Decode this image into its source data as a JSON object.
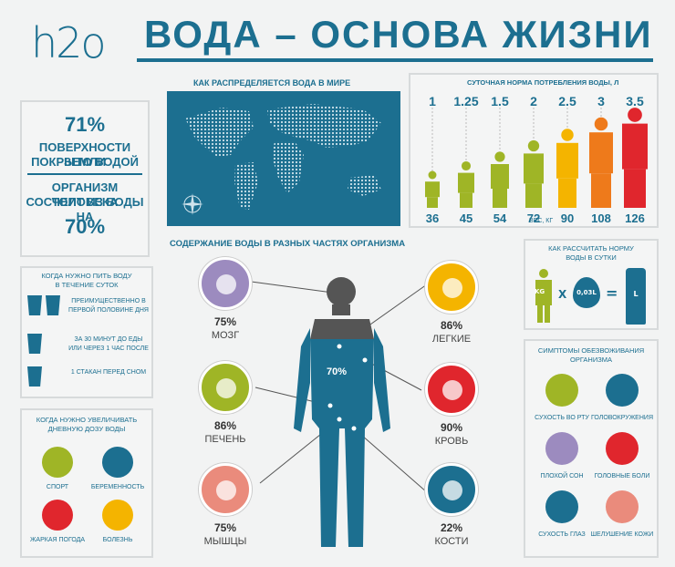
{
  "header": {
    "logo": "h2o",
    "title": "ВОДА – ОСНОВА ЖИЗНИ"
  },
  "left_facts": {
    "pct1": "71%",
    "text1a": "ПОВЕРХНОСТИ ЗЕМЛИ",
    "text1b": "ПОКРЫТО ВОДОЙ",
    "text2a": "ОРГАНИЗМ ЧЕЛОВЕКА",
    "text2b": "СОСТОИТ ИЗ ВОДЫ НА",
    "pct2": "70%"
  },
  "map": {
    "title": "КАК РАСПРЕДЕЛЯЕТСЯ ВОДА В МИРЕ"
  },
  "daily": {
    "title": "СУТОЧНАЯ НОРМА ПОТРЕБЛЕНИЯ ВОДЫ, Л",
    "liters": [
      "1",
      "1.25",
      "1.5",
      "2",
      "2.5",
      "3",
      "3.5"
    ],
    "weights": [
      "36",
      "45",
      "54",
      "72",
      "90",
      "108",
      "126"
    ],
    "weight_unit": "ВЕС, КГ",
    "colors": [
      "#9fb526",
      "#9fb526",
      "#9fb526",
      "#9fb526",
      "#f4b400",
      "#ee7a1b",
      "#e0262d"
    ]
  },
  "body": {
    "title": "СОДЕРЖАНИЕ ВОДЫ В РАЗНЫХ ЧАСТЯХ ОРГАНИЗМА",
    "center_pct": "70%"
  },
  "organs": [
    {
      "pct": "75%",
      "label": "МОЗГ",
      "icon": "brain-icon",
      "color": "#9c8bbf"
    },
    {
      "pct": "86%",
      "label": "ПЕЧЕНЬ",
      "icon": "liver-icon",
      "color": "#9fb526"
    },
    {
      "pct": "75%",
      "label": "МЫШЦЫ",
      "icon": "muscle-icon",
      "color": "#ea8b7c"
    },
    {
      "pct": "86%",
      "label": "ЛЕГКИЕ",
      "icon": "lungs-icon",
      "color": "#f4b400"
    },
    {
      "pct": "90%",
      "label": "КРОВЬ",
      "icon": "blood-drop-icon",
      "color": "#e0262d"
    },
    {
      "pct": "22%",
      "label": "КОСТИ",
      "icon": "bones-icon",
      "color": "#1c6f90"
    }
  ],
  "when_drink": {
    "title1": "КОГДА НУЖНО ПИТЬ ВОДУ",
    "title2": "В ТЕЧЕНИЕ СУТОК",
    "items": [
      {
        "a": "ПРЕИМУЩЕСТВЕННО В",
        "b": "ПЕРВОЙ ПОЛОВИНЕ ДНЯ"
      },
      {
        "a": "ЗА 30 МИНУТ ДО ЕДЫ",
        "b": "ИЛИ ЧЕРЕЗ 1 ЧАС ПОСЛЕ"
      },
      {
        "a": "1 СТАКАН ПЕРЕД СНОМ",
        "b": ""
      }
    ]
  },
  "increase": {
    "title1": "КОГДА НУЖНО УВЕЛИЧИВАТЬ",
    "title2": "ДНЕВНУЮ ДОЗУ ВОДЫ",
    "items": [
      {
        "label": "СПОРТ",
        "icon": "running-icon",
        "color": "#9fb526"
      },
      {
        "label": "БЕРЕМЕННОСТЬ",
        "icon": "pregnancy-icon",
        "color": "#1c6f90"
      },
      {
        "label": "ЖАРКАЯ ПОГОДА",
        "icon": "sun-icon",
        "color": "#e0262d"
      },
      {
        "label": "БОЛЕЗНЬ",
        "icon": "thermometer-icon",
        "color": "#f4b400"
      }
    ]
  },
  "calc": {
    "title1": "КАК РАССЧИТАТЬ НОРМУ",
    "title2": "ВОДЫ В СУТКИ",
    "kg": "KG",
    "x": "X",
    "per": "0,03L",
    "eq": "=",
    "l": "L"
  },
  "symptoms": {
    "title1": "СИМПТОМЫ ОБЕЗВОЖИВАНИЯ",
    "title2": "ОРГАНИЗМА",
    "items": [
      {
        "label": "СУХОСТЬ ВО РТУ",
        "icon": "lips-icon",
        "color": "#9fb526"
      },
      {
        "label": "ГОЛОВОКРУЖЕНИЯ",
        "icon": "dizziness-icon",
        "color": "#1c6f90"
      },
      {
        "label": "ПЛОХОЙ СОН",
        "icon": "bed-icon",
        "color": "#9c8bbf"
      },
      {
        "label": "ГОЛОВНЫЕ БОЛИ",
        "icon": "headache-icon",
        "color": "#e0262d"
      },
      {
        "label": "СУХОСТЬ ГЛАЗ",
        "icon": "eye-icon",
        "color": "#1c6f90"
      },
      {
        "label": "ШЕЛУШЕНИЕ КОЖИ",
        "icon": "hand-icon",
        "color": "#ea8b7c"
      }
    ]
  }
}
